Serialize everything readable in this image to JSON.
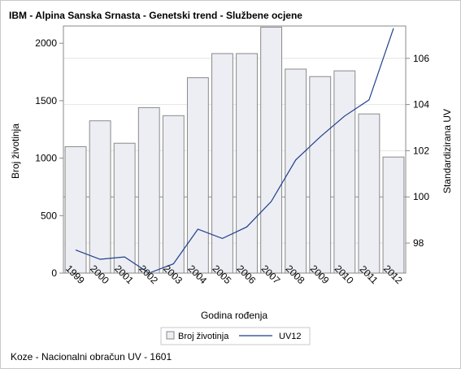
{
  "title": "IBM - Alpina Sanska Srnasta - Genetski trend - Službene ocjene",
  "footnote": "Koze - Nacionalni obračun UV - 1601",
  "chart_data": {
    "type": "bar",
    "categories": [
      "1999",
      "2000",
      "2001",
      "2002",
      "2003",
      "2004",
      "2005",
      "2006",
      "2007",
      "2008",
      "2009",
      "2010",
      "2011",
      "2012"
    ],
    "xlabel": "Godina rođenja",
    "ylabel": "Broj životinja",
    "y2label": "Standardizirana UV",
    "ylim": [
      0,
      2150
    ],
    "y2lim": [
      96.7,
      107.4
    ],
    "yticks": [
      0,
      500,
      1000,
      1500,
      2000
    ],
    "y2ticks": [
      98,
      100,
      102,
      104,
      106
    ],
    "reference_line_y2": 100,
    "grid": "horizontal",
    "legend_position": "bottom",
    "colors": {
      "bar_fill": "#eceef4",
      "bar_stroke": "#8a8a8a",
      "line": "#1f3e8c",
      "grid": "#e4e4e4",
      "refline": "#8c8c8c",
      "axis": "#8a8a8a"
    },
    "series": [
      {
        "name": "Broj životinja",
        "type": "bar",
        "axis": "left",
        "values": [
          1100,
          1325,
          1130,
          1440,
          1370,
          1700,
          1910,
          1910,
          2140,
          1775,
          1710,
          1760,
          1385,
          1010
        ]
      },
      {
        "name": "UV12",
        "type": "line",
        "axis": "right",
        "values": [
          97.7,
          97.3,
          97.4,
          96.7,
          97.1,
          98.6,
          98.2,
          98.7,
          99.8,
          101.6,
          102.6,
          103.5,
          104.2,
          107.3
        ]
      }
    ]
  }
}
